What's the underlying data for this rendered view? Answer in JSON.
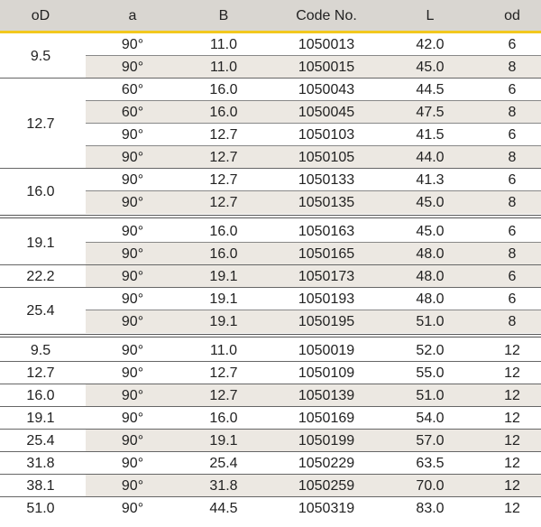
{
  "table": {
    "header": [
      "oD",
      "a",
      "B",
      "Code No.",
      "L",
      "od"
    ],
    "sections": [
      {
        "groups": [
          {
            "od": "9.5",
            "rows": [
              [
                "90°",
                "11.0",
                "1050013",
                "42.0",
                "6"
              ],
              [
                "90°",
                "11.0",
                "1050015",
                "45.0",
                "8"
              ]
            ]
          },
          {
            "od": "12.7",
            "rows": [
              [
                "60°",
                "16.0",
                "1050043",
                "44.5",
                "6"
              ],
              [
                "60°",
                "16.0",
                "1050045",
                "47.5",
                "8"
              ],
              [
                "90°",
                "12.7",
                "1050103",
                "41.5",
                "6"
              ],
              [
                "90°",
                "12.7",
                "1050105",
                "44.0",
                "8"
              ]
            ]
          },
          {
            "od": "16.0",
            "rows": [
              [
                "90°",
                "12.7",
                "1050133",
                "41.3",
                "6"
              ],
              [
                "90°",
                "12.7",
                "1050135",
                "45.0",
                "8"
              ]
            ]
          }
        ]
      },
      {
        "groups": [
          {
            "od": "19.1",
            "rows": [
              [
                "90°",
                "16.0",
                "1050163",
                "45.0",
                "6"
              ],
              [
                "90°",
                "16.0",
                "1050165",
                "48.0",
                "8"
              ]
            ]
          },
          {
            "od": "22.2",
            "rows": [
              [
                "90°",
                "19.1",
                "1050173",
                "48.0",
                "6"
              ]
            ]
          },
          {
            "od": "25.4",
            "rows": [
              [
                "90°",
                "19.1",
                "1050193",
                "48.0",
                "6"
              ],
              [
                "90°",
                "19.1",
                "1050195",
                "51.0",
                "8"
              ]
            ]
          }
        ]
      },
      {
        "groups": [
          {
            "od": "9.5",
            "rows": [
              [
                "90°",
                "11.0",
                "1050019",
                "52.0",
                "12"
              ]
            ]
          },
          {
            "od": "12.7",
            "rows": [
              [
                "90°",
                "12.7",
                "1050109",
                "55.0",
                "12"
              ]
            ]
          },
          {
            "od": "16.0",
            "rows": [
              [
                "90°",
                "12.7",
                "1050139",
                "51.0",
                "12"
              ]
            ]
          },
          {
            "od": "19.1",
            "rows": [
              [
                "90°",
                "16.0",
                "1050169",
                "54.0",
                "12"
              ]
            ]
          },
          {
            "od": "25.4",
            "rows": [
              [
                "90°",
                "19.1",
                "1050199",
                "57.0",
                "12"
              ]
            ]
          },
          {
            "od": "31.8",
            "rows": [
              [
                "90°",
                "25.4",
                "1050229",
                "63.5",
                "12"
              ]
            ]
          },
          {
            "od": "38.1",
            "rows": [
              [
                "90°",
                "31.8",
                "1050259",
                "70.0",
                "12"
              ]
            ]
          },
          {
            "od": "51.0",
            "rows": [
              [
                "90°",
                "44.5",
                "1050319",
                "83.0",
                "12"
              ]
            ]
          }
        ]
      }
    ]
  }
}
